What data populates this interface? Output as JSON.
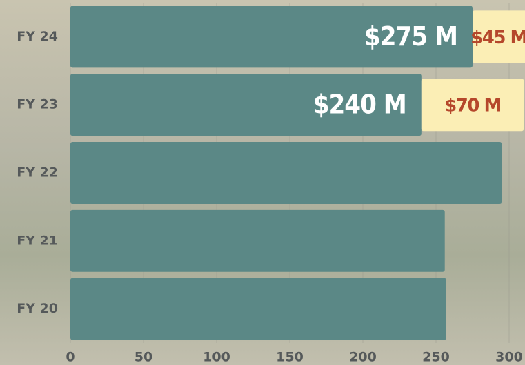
{
  "chart_data": {
    "type": "bar",
    "orientation": "horizontal",
    "stacked": true,
    "categories": [
      "FY 24",
      "FY 23",
      "FY 22",
      "FY 21",
      "FY 20"
    ],
    "series": [
      {
        "color": "#5b8886",
        "values": [
          275,
          240,
          295,
          256,
          257
        ],
        "value_labels": [
          "$275 M",
          "$240 M",
          null,
          null,
          null
        ]
      },
      {
        "color": "#fbeeb5",
        "label_color": "#b5472b",
        "values": [
          45,
          70,
          null,
          null,
          null
        ],
        "value_labels": [
          "$45 M",
          "$70 M",
          null,
          null,
          null
        ]
      }
    ],
    "xlim": [
      0,
      300
    ],
    "xticks": [
      0,
      50,
      100,
      150,
      200,
      250,
      300
    ],
    "grid": true
  }
}
